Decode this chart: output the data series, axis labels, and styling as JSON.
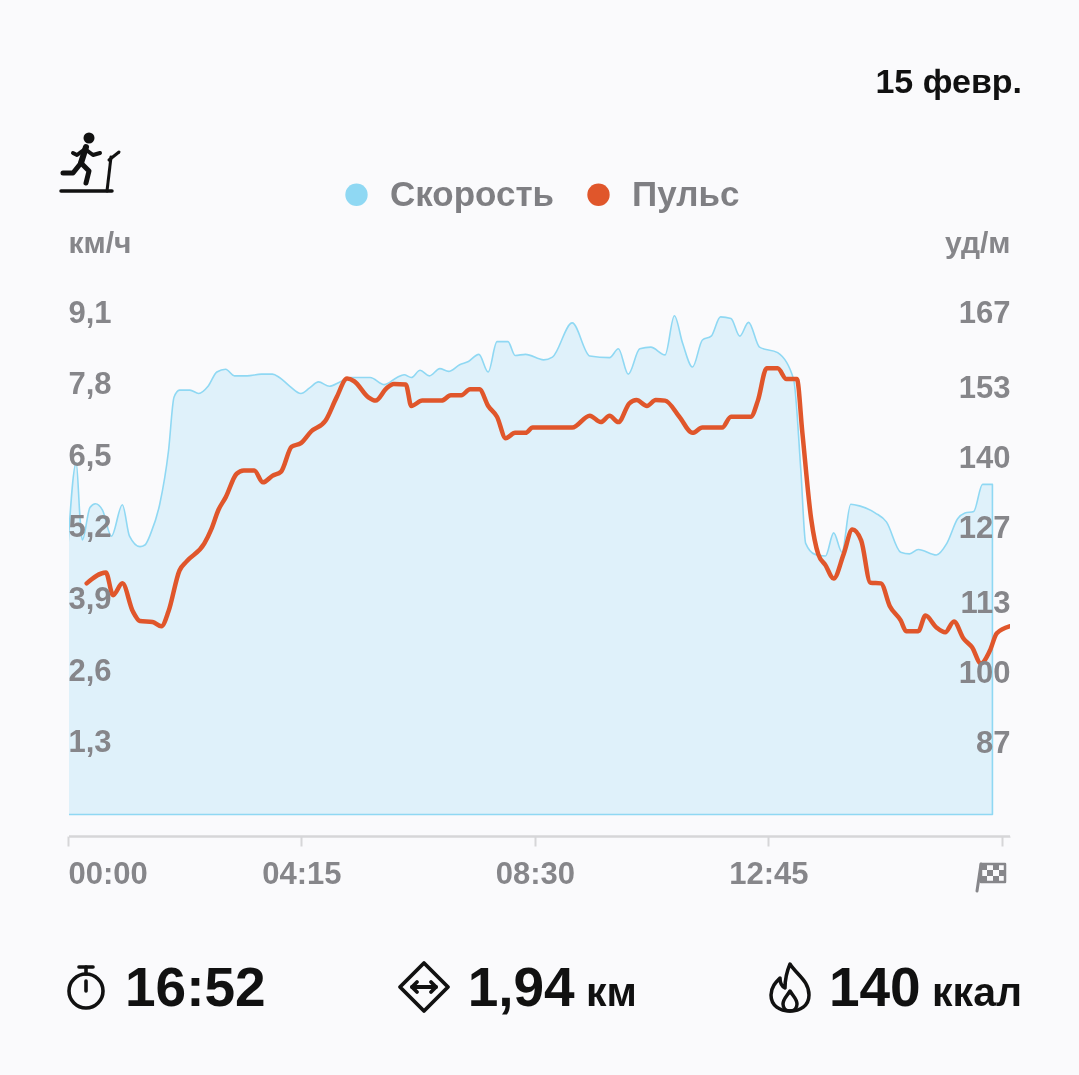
{
  "chart_data": {
    "type": "line",
    "subtitle": "15 февр.",
    "ylabel": "км/ч",
    "y2label": "уд/м",
    "xlim": [
      0,
      17.15
    ],
    "xticks": [
      {
        "value": 0,
        "label": "00:00"
      },
      {
        "value": 4.25,
        "label": "04:15"
      },
      {
        "value": 8.5,
        "label": "08:30"
      },
      {
        "value": 12.75,
        "label": "12:45"
      },
      {
        "value": 17,
        "label": null
      }
    ],
    "ylim": [
      -0.39,
      9.1
    ],
    "yticks": [
      {
        "value": 1.3,
        "label": "1,3"
      },
      {
        "value": 2.6,
        "label": "2,6"
      },
      {
        "value": 3.9,
        "label": "3,9"
      },
      {
        "value": 5.2,
        "label": "5,2"
      },
      {
        "value": 6.5,
        "label": "6,5"
      },
      {
        "value": 7.8,
        "label": "7,8"
      },
      {
        "value": 9.1,
        "label": "9,1"
      }
    ],
    "y2lim": [
      69.7,
      167
    ],
    "y2ticks": [
      87,
      100,
      113,
      127,
      140,
      153,
      167
    ],
    "legend": "top",
    "series": [
      {
        "name": "Скорость",
        "type": "area",
        "color": "#8fd8f3",
        "x": [
          0,
          0.15,
          0.22,
          0.26,
          0.4,
          0.5,
          0.63,
          0.79,
          0.99,
          1.12,
          1.31,
          1.4,
          1.51,
          1.67,
          1.83,
          1.93,
          2.03,
          2.22,
          2.38,
          2.55,
          2.71,
          2.87,
          3.03,
          3.26,
          3.52,
          3.72,
          3.85,
          4.04,
          4.24,
          4.4,
          4.56,
          4.76,
          4.95,
          5.15,
          5.5,
          5.76,
          5.99,
          6.12,
          6.25,
          6.41,
          6.58,
          6.77,
          6.93,
          7.13,
          7.29,
          7.48,
          7.65,
          7.81,
          8.01,
          8.14,
          8.33,
          8.66,
          8.82,
          9.18,
          9.5,
          9.86,
          10.02,
          10.2,
          10.41,
          10.61,
          10.87,
          11.04,
          11.19,
          11.37,
          11.55,
          11.71,
          11.88,
          12.07,
          12.23,
          12.39,
          12.59,
          12.92,
          13.21,
          13.34,
          13.43,
          13.6,
          13.79,
          13.94,
          14.09,
          14.25,
          14.41,
          14.7,
          14.9,
          15.16,
          15.32,
          15.48,
          15.81,
          16.0,
          16.2,
          16.33,
          16.49,
          16.65,
          16.83
        ],
        "values": [
          4.89,
          6.38,
          5.37,
          4.98,
          5.57,
          5.64,
          5.52,
          5.05,
          5.62,
          5.05,
          4.86,
          4.89,
          5.11,
          5.63,
          6.6,
          7.57,
          7.7,
          7.7,
          7.64,
          7.77,
          8.03,
          8.08,
          7.96,
          7.96,
          7.99,
          7.99,
          7.93,
          7.77,
          7.64,
          7.74,
          7.85,
          7.77,
          7.85,
          7.93,
          7.93,
          7.8,
          7.93,
          7.98,
          7.93,
          8.06,
          7.96,
          8.09,
          8.04,
          8.16,
          8.22,
          8.35,
          8.03,
          8.58,
          8.58,
          8.33,
          8.35,
          8.25,
          8.3,
          8.92,
          8.32,
          8.29,
          8.45,
          7.99,
          8.45,
          8.48,
          8.34,
          9.05,
          8.55,
          8.12,
          8.61,
          8.68,
          9.03,
          9.0,
          8.68,
          8.93,
          8.48,
          8.38,
          7.9,
          6.28,
          4.92,
          4.72,
          4.69,
          5.11,
          4.76,
          5.63,
          5.6,
          5.47,
          5.31,
          4.76,
          4.73,
          4.81,
          4.71,
          4.92,
          5.37,
          5.47,
          5.5,
          5.99,
          5.99
        ]
      },
      {
        "name": "Пульс",
        "axis": "y2",
        "color": "#e0562b",
        "x": [
          0.34,
          0.69,
          0.82,
          0.99,
          1.18,
          1.31,
          1.54,
          1.7,
          1.83,
          2.03,
          2.16,
          2.48,
          2.61,
          2.74,
          2.87,
          3.07,
          3.2,
          3.39,
          3.55,
          3.72,
          3.88,
          4.07,
          4.24,
          4.43,
          4.69,
          4.89,
          5.08,
          5.21,
          5.47,
          5.6,
          5.8,
          5.93,
          6.15,
          6.25,
          6.45,
          6.8,
          6.97,
          7.16,
          7.32,
          7.49,
          7.65,
          7.81,
          7.97,
          8.14,
          8.33,
          8.46,
          9.18,
          9.5,
          9.7,
          9.86,
          10.02,
          10.22,
          10.35,
          10.54,
          10.7,
          10.87,
          11.13,
          11.37,
          11.55,
          11.91,
          12.07,
          12.43,
          12.56,
          12.72,
          12.92,
          13.08,
          13.27,
          13.37,
          13.53,
          13.66,
          13.79,
          13.94,
          14.12,
          14.28,
          14.44,
          14.61,
          14.8,
          14.96,
          15.16,
          15.26,
          15.48,
          15.61,
          15.81,
          15.97,
          16.13,
          16.3,
          16.46,
          16.62,
          16.78,
          16.91,
          17.14
        ],
        "values": [
          116.7,
          118.7,
          114.5,
          116.7,
          111.5,
          109.7,
          109.5,
          108.7,
          111.5,
          119.1,
          120.8,
          124.1,
          126.8,
          130.4,
          132.7,
          137.1,
          137.7,
          137.7,
          135.5,
          136.7,
          137.5,
          142.1,
          142.8,
          145.0,
          147.0,
          151.3,
          154.8,
          154.3,
          151.3,
          150.7,
          153.0,
          153.8,
          153.7,
          149.7,
          150.7,
          150.7,
          151.7,
          151.7,
          152.8,
          152.8,
          149.7,
          147.7,
          143.7,
          144.7,
          144.7,
          145.7,
          145.7,
          147.9,
          146.7,
          147.9,
          146.7,
          150.2,
          150.8,
          149.7,
          150.8,
          150.7,
          147.7,
          144.7,
          145.7,
          145.7,
          147.7,
          147.7,
          150.7,
          156.7,
          156.7,
          154.7,
          154.7,
          144.7,
          128.7,
          122.1,
          120.1,
          117.6,
          122.1,
          126.7,
          124.7,
          116.8,
          116.7,
          112.5,
          109.8,
          107.8,
          107.8,
          110.7,
          108.5,
          107.6,
          109.6,
          106.5,
          104.8,
          101.8,
          104.1,
          107.4,
          108.7
        ]
      }
    ],
    "annotations": [
      "16:52",
      "1,94 км",
      "140 ккал"
    ]
  }
}
